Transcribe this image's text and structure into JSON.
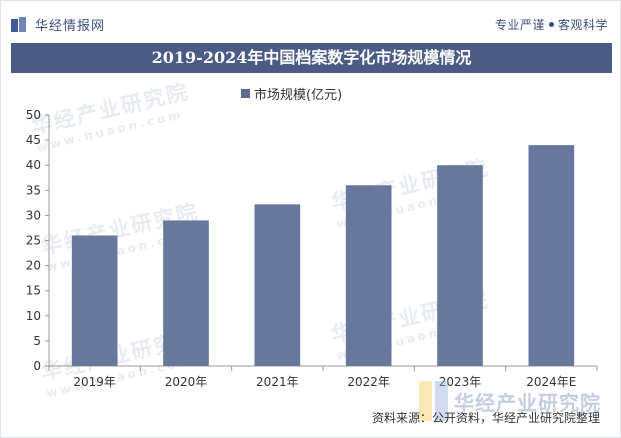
{
  "header": {
    "brand_name": "华经情报网",
    "slogan_left": "专业严谨",
    "slogan_right": "客观科学",
    "title": "2019-2024年中国档案数字化市场规模情况"
  },
  "colors": {
    "bar": "#68779c",
    "title_bg": "#4a5b86",
    "brand": "#3c4f7c"
  },
  "watermark": {
    "text": "华经产业研究院",
    "sub": "www.huaon.com"
  },
  "source": "资料来源：公开资料，华经产业研究院整理",
  "chart_data": {
    "type": "bar",
    "categories": [
      "2019年",
      "2020年",
      "2021年",
      "2022年",
      "2023年",
      "2024年E"
    ],
    "series": [
      {
        "name": "市场规模(亿元)",
        "values": [
          26,
          29,
          32.2,
          36,
          40,
          44
        ]
      }
    ],
    "ylim": [
      0,
      50
    ],
    "yticks": [
      0,
      5,
      10,
      15,
      20,
      25,
      30,
      35,
      40,
      45,
      50
    ],
    "legend_position": "top-center",
    "grid": false
  }
}
